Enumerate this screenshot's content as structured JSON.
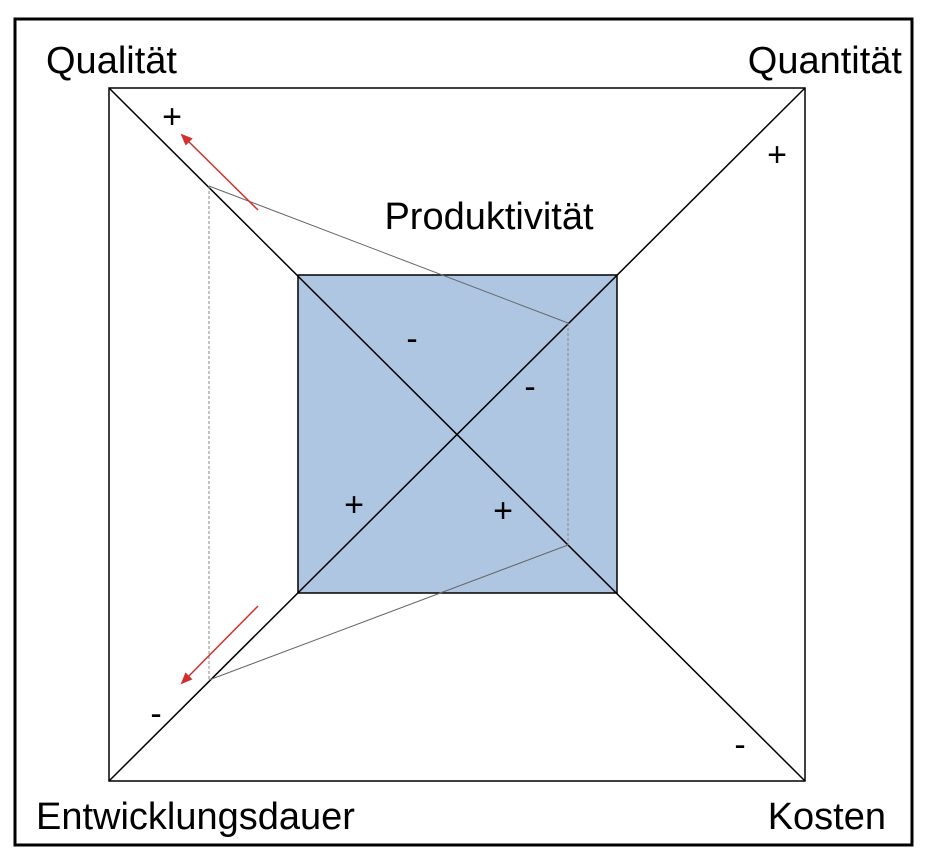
{
  "labels": {
    "quality": "Qualität",
    "quantity": "Quantität",
    "development_time": "Entwicklungsdauer",
    "costs": "Kosten",
    "productivity": "Produktivität"
  },
  "signs": {
    "quality_outer": "+",
    "quantity_outer": "+",
    "dev_time_outer": "-",
    "costs_outer": "-",
    "inner_quality": "-",
    "inner_quantity": "-",
    "inner_dev_time": "+",
    "inner_costs": "+"
  },
  "colors": {
    "productivity_fill": "#aec6e2",
    "arrow": "#d03030",
    "stroke": "#000000",
    "thin_stroke": "#666666"
  }
}
